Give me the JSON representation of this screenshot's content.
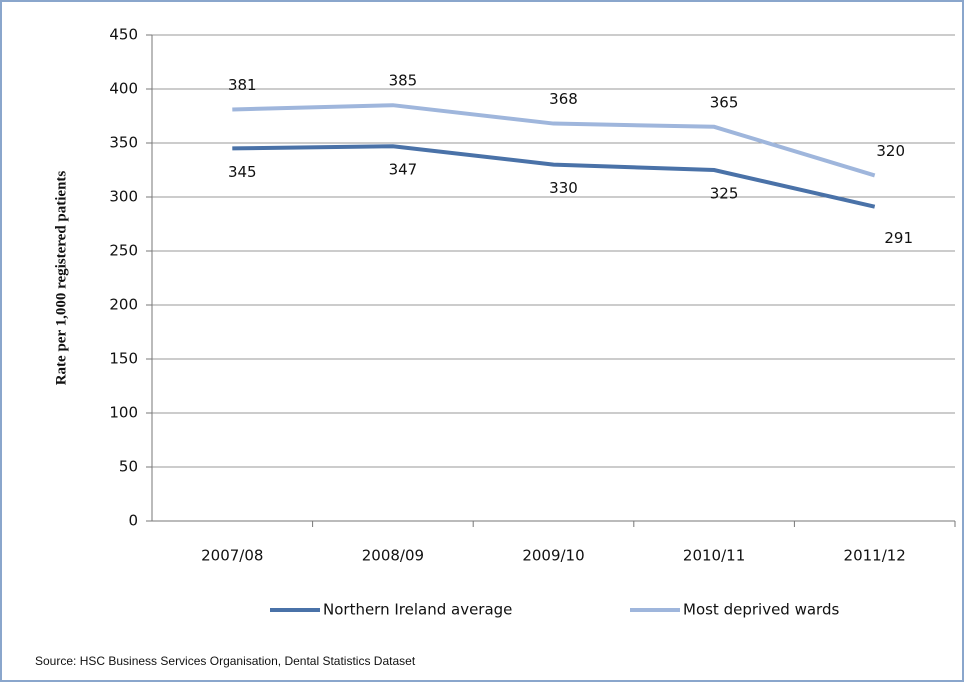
{
  "chart_data": {
    "type": "line",
    "y_label": "Rate per 1,000 registered patients",
    "categories": [
      "2007/08",
      "2008/09",
      "2009/10",
      "2010/11",
      "2011/12"
    ],
    "series": [
      {
        "name": "Northern Ireland average",
        "color": "#4a72a8",
        "values": [
          345,
          347,
          330,
          325,
          291
        ]
      },
      {
        "name": "Most deprived wards",
        "color": "#9fb6dc",
        "values": [
          381,
          385,
          368,
          365,
          320
        ]
      }
    ],
    "ylim": [
      0,
      450
    ],
    "yticks": [
      0,
      50,
      100,
      150,
      200,
      250,
      300,
      350,
      400,
      450
    ],
    "grid": true,
    "legend": "bottom",
    "source": "Source: HSC Business Services Organisation, Dental Statistics Dataset"
  }
}
